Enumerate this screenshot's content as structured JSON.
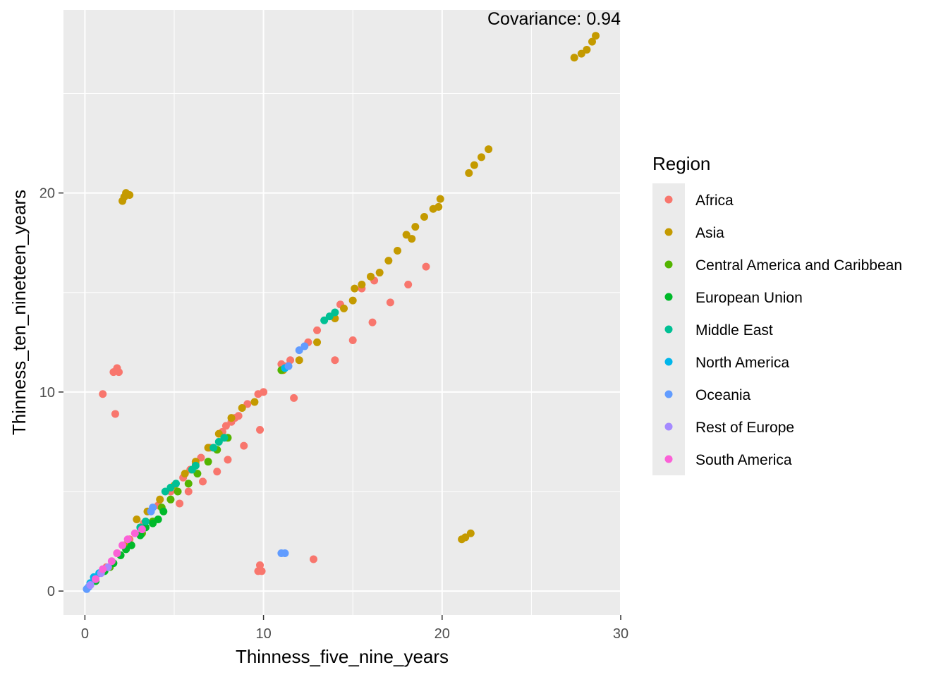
{
  "chart_data": {
    "type": "scatter",
    "title": "",
    "xlabel": "Thinness_five_nine_years",
    "ylabel": "Thinness_ten_nineteen_years",
    "xlim": [
      -1.2,
      30
    ],
    "ylim": [
      -1.2,
      29.2
    ],
    "x_ticks": [
      0,
      10,
      20,
      30
    ],
    "y_ticks": [
      0,
      10,
      20
    ],
    "x_tick_labels": [
      "0",
      "10",
      "20",
      "30"
    ],
    "y_tick_labels": [
      "0",
      "10",
      "20"
    ],
    "grid": true,
    "legend": {
      "title": "Region",
      "position": "right"
    },
    "annotation": "Covariance: 0.94",
    "series": [
      {
        "name": "Africa",
        "color": "#F8766D",
        "points": [
          [
            1.0,
            9.9
          ],
          [
            1.7,
            8.9
          ],
          [
            1.6,
            11.0
          ],
          [
            1.8,
            11.2
          ],
          [
            1.9,
            11.0
          ],
          [
            9.7,
            1.0
          ],
          [
            9.8,
            1.3
          ],
          [
            9.9,
            1.0
          ],
          [
            12.8,
            1.6
          ],
          [
            11.7,
            9.7
          ],
          [
            9.8,
            8.1
          ],
          [
            8.9,
            7.3
          ],
          [
            8.0,
            6.6
          ],
          [
            7.4,
            6.0
          ],
          [
            6.6,
            5.5
          ],
          [
            5.8,
            5.0
          ],
          [
            5.3,
            4.4
          ],
          [
            14.0,
            11.6
          ],
          [
            15.0,
            12.6
          ],
          [
            16.1,
            13.5
          ],
          [
            17.1,
            14.5
          ],
          [
            18.1,
            15.4
          ],
          [
            19.1,
            16.3
          ],
          [
            1.2,
            1.2
          ],
          [
            1.8,
            1.9
          ],
          [
            2.5,
            2.6
          ],
          [
            3.3,
            3.4
          ],
          [
            4.1,
            4.3
          ],
          [
            4.8,
            5.0
          ],
          [
            5.5,
            5.7
          ],
          [
            6.2,
            6.4
          ],
          [
            7.0,
            7.2
          ],
          [
            7.7,
            8.0
          ],
          [
            8.4,
            8.7
          ],
          [
            9.1,
            9.4
          ],
          [
            9.7,
            9.9
          ],
          [
            11.0,
            11.4
          ],
          [
            11.5,
            11.6
          ],
          [
            12.5,
            12.5
          ],
          [
            13.0,
            13.1
          ],
          [
            14.3,
            14.4
          ],
          [
            15.5,
            15.2
          ],
          [
            16.2,
            15.6
          ],
          [
            7.9,
            8.3
          ],
          [
            8.2,
            8.5
          ],
          [
            8.6,
            8.8
          ],
          [
            6.5,
            6.7
          ],
          [
            5.9,
            6.1
          ],
          [
            10.0,
            10.0
          ],
          [
            11.3,
            11.3
          ]
        ]
      },
      {
        "name": "Asia",
        "color": "#C49A00",
        "points": [
          [
            2.1,
            19.6
          ],
          [
            2.2,
            19.8
          ],
          [
            2.3,
            20.0
          ],
          [
            2.5,
            19.9
          ],
          [
            21.1,
            2.6
          ],
          [
            21.3,
            2.7
          ],
          [
            21.6,
            2.9
          ],
          [
            27.4,
            26.8
          ],
          [
            27.8,
            27.0
          ],
          [
            28.1,
            27.2
          ],
          [
            28.4,
            27.6
          ],
          [
            28.6,
            27.9
          ],
          [
            21.5,
            21.0
          ],
          [
            21.8,
            21.4
          ],
          [
            22.2,
            21.8
          ],
          [
            22.6,
            22.2
          ],
          [
            11.1,
            11.1
          ],
          [
            12.0,
            11.6
          ],
          [
            13.0,
            12.5
          ],
          [
            14.0,
            13.7
          ],
          [
            15.0,
            14.6
          ],
          [
            16.0,
            15.8
          ],
          [
            17.0,
            16.6
          ],
          [
            17.5,
            17.1
          ],
          [
            18.0,
            17.9
          ],
          [
            18.5,
            18.3
          ],
          [
            19.0,
            18.8
          ],
          [
            19.5,
            19.2
          ],
          [
            19.9,
            19.7
          ],
          [
            19.8,
            19.3
          ],
          [
            14.5,
            14.2
          ],
          [
            15.1,
            15.2
          ],
          [
            15.5,
            15.4
          ],
          [
            2.2,
            2.3
          ],
          [
            2.9,
            3.6
          ],
          [
            3.5,
            4.0
          ],
          [
            4.2,
            4.6
          ],
          [
            5.0,
            5.3
          ],
          [
            5.6,
            5.9
          ],
          [
            6.2,
            6.5
          ],
          [
            6.9,
            7.2
          ],
          [
            7.5,
            7.9
          ],
          [
            8.2,
            8.7
          ],
          [
            8.8,
            9.2
          ],
          [
            9.5,
            9.5
          ],
          [
            16.5,
            16.0
          ],
          [
            18.3,
            17.7
          ]
        ]
      },
      {
        "name": "Central America and Caribbean",
        "color": "#53B400",
        "points": [
          [
            1.4,
            1.2
          ],
          [
            2.0,
            1.8
          ],
          [
            2.6,
            2.3
          ],
          [
            3.2,
            2.9
          ],
          [
            3.8,
            3.5
          ],
          [
            4.3,
            4.2
          ],
          [
            4.8,
            4.6
          ],
          [
            5.2,
            5.0
          ],
          [
            5.8,
            5.4
          ],
          [
            6.3,
            5.9
          ],
          [
            6.9,
            6.5
          ],
          [
            7.4,
            7.1
          ],
          [
            8.0,
            7.7
          ],
          [
            11.0,
            11.1
          ]
        ]
      },
      {
        "name": "European Union",
        "color": "#00B92A",
        "points": [
          [
            0.6,
            0.5
          ],
          [
            1.1,
            1.0
          ],
          [
            1.6,
            1.4
          ],
          [
            2.0,
            1.8
          ],
          [
            2.6,
            2.3
          ],
          [
            3.1,
            2.8
          ],
          [
            3.4,
            3.2
          ],
          [
            3.8,
            3.4
          ],
          [
            4.1,
            3.6
          ],
          [
            4.4,
            4.0
          ],
          [
            2.3,
            2.1
          ]
        ]
      },
      {
        "name": "Middle East",
        "color": "#00C094",
        "points": [
          [
            13.4,
            13.6
          ],
          [
            13.7,
            13.8
          ],
          [
            14.0,
            14.0
          ],
          [
            4.5,
            5.0
          ],
          [
            4.8,
            5.2
          ],
          [
            5.1,
            5.4
          ],
          [
            6.0,
            6.1
          ],
          [
            6.2,
            6.3
          ],
          [
            7.2,
            7.2
          ],
          [
            7.5,
            7.5
          ],
          [
            7.8,
            7.7
          ],
          [
            3.1,
            3.2
          ],
          [
            3.4,
            3.5
          ]
        ]
      },
      {
        "name": "North America",
        "color": "#00B6EB",
        "points": [
          [
            0.3,
            0.4
          ],
          [
            0.5,
            0.7
          ],
          [
            0.8,
            0.9
          ],
          [
            11.2,
            11.2
          ]
        ]
      },
      {
        "name": "Oceania",
        "color": "#619CFF",
        "points": [
          [
            0.1,
            0.1
          ],
          [
            0.2,
            0.2
          ],
          [
            0.3,
            0.3
          ],
          [
            3.7,
            4.0
          ],
          [
            3.8,
            4.2
          ],
          [
            11.0,
            1.9
          ],
          [
            11.2,
            1.9
          ],
          [
            12.0,
            12.1
          ],
          [
            12.3,
            12.3
          ],
          [
            11.4,
            11.3
          ]
        ]
      },
      {
        "name": "Rest of Europe",
        "color": "#A58AFF",
        "points": [
          [
            0.3,
            0.3
          ],
          [
            0.6,
            0.6
          ],
          [
            0.9,
            0.9
          ],
          [
            1.3,
            1.2
          ]
        ]
      },
      {
        "name": "South America",
        "color": "#FB61D7",
        "points": [
          [
            1.0,
            1.1
          ],
          [
            1.5,
            1.5
          ],
          [
            2.1,
            2.3
          ],
          [
            2.4,
            2.6
          ],
          [
            2.8,
            2.9
          ],
          [
            3.2,
            3.1
          ],
          [
            0.6,
            0.6
          ],
          [
            1.8,
            1.9
          ]
        ]
      }
    ]
  }
}
